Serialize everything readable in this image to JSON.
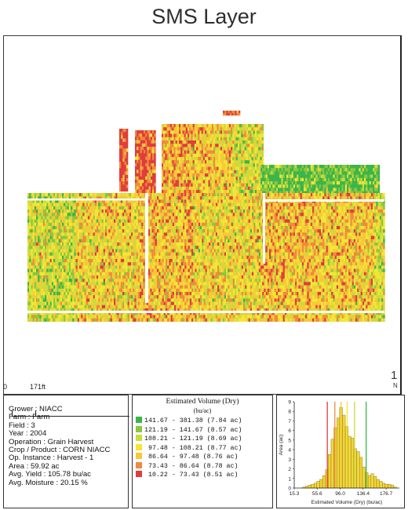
{
  "title": "SMS Layer",
  "scale": {
    "zero": "0",
    "distance": "171ft"
  },
  "north": {
    "number": "1",
    "letter": "N"
  },
  "info": {
    "lines": [
      "Grower : NIACC",
      "Farm : Farm",
      "Field : 3",
      "Year : 2004",
      "Operation : Grain Harvest",
      "Crop / Product : CORN NIACC",
      "Op. Instance : Harvest - 1",
      "Area : 59.92 ac",
      "Avg. Yield : 105.78 bu/ac",
      "Avg. Moisture : 20.15 %"
    ]
  },
  "legend": {
    "title": "Estimated Volume (Dry)",
    "unit": "(bu/ac)",
    "rows": [
      {
        "label": "141.67 - 381.38 (7.84 ac)",
        "color": "#3bb54a"
      },
      {
        "label": "121.19 - 141.67 (8.57 ac)",
        "color": "#8cc63f"
      },
      {
        "label": "108.21 - 121.19 (8.69 ac)",
        "color": "#c8dc3c"
      },
      {
        "label": " 97.48 - 108.21 (8.77 ac)",
        "color": "#f2e635"
      },
      {
        "label": " 86.64 -  97.48 (8.76 ac)",
        "color": "#f8c837"
      },
      {
        "label": " 73.43 -  86.64 (8.78 ac)",
        "color": "#f08a3c"
      },
      {
        "label": " 10.22 -  73.43 (8.51 ac)",
        "color": "#e03c3c"
      }
    ]
  },
  "chart_data": {
    "type": "bar",
    "ylabel": "Area (ac)",
    "xlabel": "Estimated Volume (Dry) (bu/ac)",
    "ylim": [
      0,
      9
    ],
    "yticks": [
      "0",
      "1",
      "2",
      "3",
      "4",
      "5",
      "6",
      "7",
      "8",
      "9"
    ],
    "xticks": [
      "15.3",
      "55.6",
      "96.0",
      "136.4",
      "176.7"
    ],
    "xlim": [
      15.3,
      200
    ],
    "bin_width": 5,
    "bins_start": [
      30,
      35,
      40,
      45,
      50,
      55,
      60,
      65,
      70,
      75,
      80,
      85,
      90,
      95,
      100,
      105,
      110,
      115,
      120,
      125,
      130,
      135,
      140,
      145,
      150,
      155,
      160,
      165,
      170,
      175,
      180,
      185,
      190
    ],
    "values": [
      0.1,
      0.2,
      0.3,
      0.4,
      0.5,
      0.7,
      0.9,
      1.3,
      1.9,
      3.5,
      5.1,
      6.3,
      7.3,
      8.4,
      7.6,
      6.4,
      5.4,
      5.2,
      4.1,
      3.8,
      3.2,
      2.2,
      1.6,
      1.3,
      1.5,
      1.2,
      0.9,
      0.7,
      0.5,
      0.4,
      0.4,
      0.3,
      0.1
    ],
    "threshold_lines": [
      {
        "value": 73.43,
        "color": "#e03c3c"
      },
      {
        "value": 86.64,
        "color": "#f08a3c"
      },
      {
        "value": 97.48,
        "color": "#f8c837"
      },
      {
        "value": 108.21,
        "color": "#f2e635"
      },
      {
        "value": 121.19,
        "color": "#c8dc3c"
      },
      {
        "value": 141.67,
        "color": "#3bb54a"
      }
    ],
    "bar_color": "#f2d63a"
  }
}
